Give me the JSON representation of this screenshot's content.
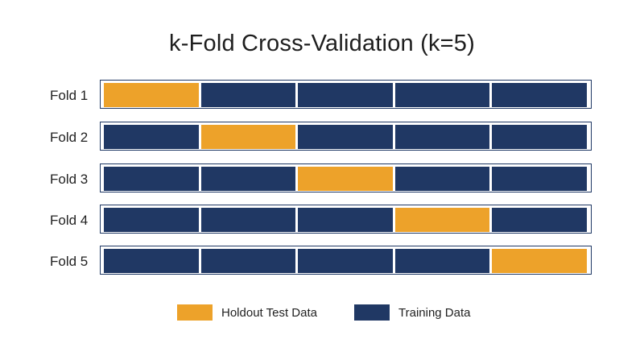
{
  "title": "k-Fold Cross-Validation (k=5)",
  "colors": {
    "holdout": "#eda22a",
    "training": "#203864",
    "frame": "#1f3864"
  },
  "folds": [
    {
      "label": "Fold 1",
      "holdout_index": 0
    },
    {
      "label": "Fold 2",
      "holdout_index": 1
    },
    {
      "label": "Fold 3",
      "holdout_index": 2
    },
    {
      "label": "Fold 4",
      "holdout_index": 3
    },
    {
      "label": "Fold 5",
      "holdout_index": 4
    }
  ],
  "segments_per_fold": 5,
  "legend": {
    "holdout_label": "Holdout Test Data",
    "training_label": "Training Data"
  }
}
